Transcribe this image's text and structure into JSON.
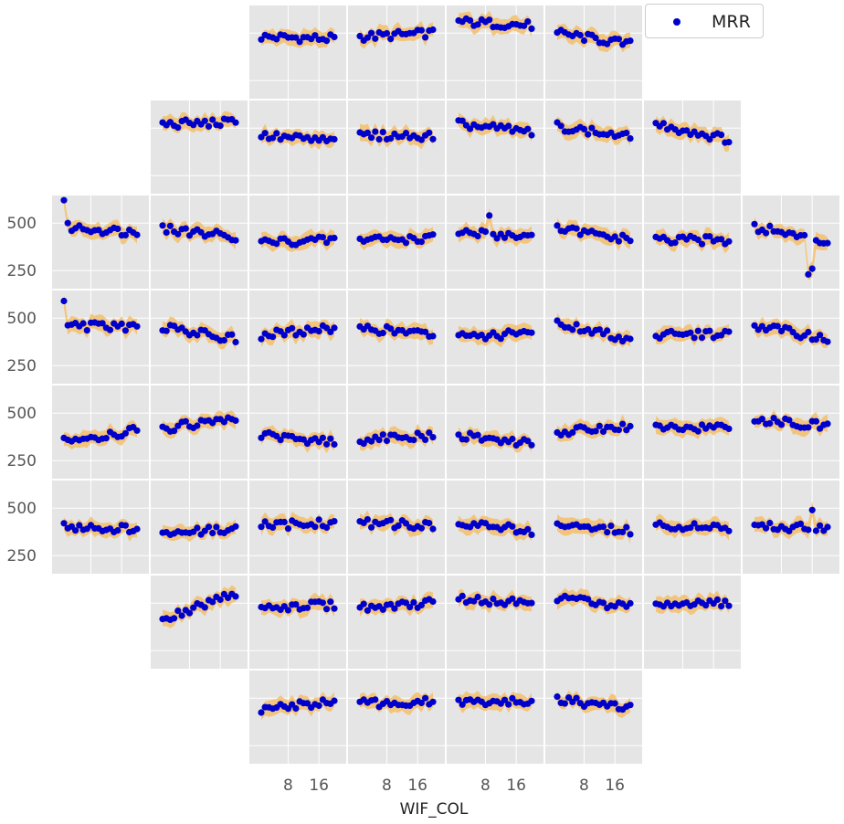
{
  "colors": {
    "panel_bg": "#e5e5e5",
    "grid": "#ffffff",
    "band": "#f5bf6a",
    "points": "#0000cc"
  },
  "chart_data": {
    "type": "scatter",
    "description_of_layout": "Small multiples arranged like a wafer map; rows 0-7, columns 0-7",
    "xlabel": "WIF_COL",
    "x_ticks": [
      "8",
      "16"
    ],
    "y_ticks": [
      "500",
      "250"
    ],
    "ylim": [
      150,
      650
    ],
    "legend": [
      "MRR"
    ],
    "panels": [
      {
        "row": 0,
        "col": 2,
        "start": 480,
        "trend": -10,
        "spikes": []
      },
      {
        "row": 0,
        "col": 3,
        "start": 480,
        "trend": 20,
        "spikes": []
      },
      {
        "row": 0,
        "col": 4,
        "start": 560,
        "trend": -20,
        "spikes": []
      },
      {
        "row": 0,
        "col": 5,
        "start": 500,
        "trend": -60,
        "spikes": []
      },
      {
        "row": 1,
        "col": 1,
        "start": 520,
        "trend": 10,
        "spikes": []
      },
      {
        "row": 1,
        "col": 2,
        "start": 460,
        "trend": -30,
        "spikes": []
      },
      {
        "row": 1,
        "col": 3,
        "start": 460,
        "trend": 0,
        "spikes": []
      },
      {
        "row": 1,
        "col": 4,
        "start": 520,
        "trend": -40,
        "spikes": []
      },
      {
        "row": 1,
        "col": 5,
        "start": 510,
        "trend": -60,
        "spikes": []
      },
      {
        "row": 1,
        "col": 6,
        "start": 520,
        "trend": -80,
        "spikes": []
      },
      {
        "row": 2,
        "col": 0,
        "start": 480,
        "trend": -30,
        "spikes": [
          {
            "i": 0,
            "y": 620
          }
        ]
      },
      {
        "row": 2,
        "col": 1,
        "start": 470,
        "trend": -40,
        "spikes": []
      },
      {
        "row": 2,
        "col": 2,
        "start": 400,
        "trend": 10,
        "spikes": []
      },
      {
        "row": 2,
        "col": 3,
        "start": 410,
        "trend": 10,
        "spikes": []
      },
      {
        "row": 2,
        "col": 4,
        "start": 450,
        "trend": -20,
        "spikes": [
          {
            "i": 8,
            "y": 540
          }
        ]
      },
      {
        "row": 2,
        "col": 5,
        "start": 470,
        "trend": -60,
        "spikes": []
      },
      {
        "row": 2,
        "col": 6,
        "start": 410,
        "trend": 0,
        "spikes": []
      },
      {
        "row": 2,
        "col": 7,
        "start": 480,
        "trend": -80,
        "spikes": [
          {
            "i": 14,
            "y": 230
          },
          {
            "i": 15,
            "y": 260
          }
        ]
      },
      {
        "row": 3,
        "col": 0,
        "start": 460,
        "trend": -10,
        "spikes": [
          {
            "i": 0,
            "y": 590
          }
        ]
      },
      {
        "row": 3,
        "col": 1,
        "start": 450,
        "trend": -60,
        "spikes": []
      },
      {
        "row": 3,
        "col": 2,
        "start": 410,
        "trend": 40,
        "spikes": []
      },
      {
        "row": 3,
        "col": 3,
        "start": 450,
        "trend": -40,
        "spikes": []
      },
      {
        "row": 3,
        "col": 4,
        "start": 400,
        "trend": 20,
        "spikes": []
      },
      {
        "row": 3,
        "col": 5,
        "start": 470,
        "trend": -80,
        "spikes": []
      },
      {
        "row": 3,
        "col": 6,
        "start": 410,
        "trend": 10,
        "spikes": []
      },
      {
        "row": 3,
        "col": 7,
        "start": 460,
        "trend": -70,
        "spikes": []
      },
      {
        "row": 4,
        "col": 0,
        "start": 350,
        "trend": 60,
        "spikes": []
      },
      {
        "row": 4,
        "col": 1,
        "start": 420,
        "trend": 50,
        "spikes": []
      },
      {
        "row": 4,
        "col": 2,
        "start": 380,
        "trend": -30,
        "spikes": []
      },
      {
        "row": 4,
        "col": 3,
        "start": 360,
        "trend": 20,
        "spikes": []
      },
      {
        "row": 4,
        "col": 4,
        "start": 380,
        "trend": -40,
        "spikes": []
      },
      {
        "row": 4,
        "col": 5,
        "start": 400,
        "trend": 30,
        "spikes": []
      },
      {
        "row": 4,
        "col": 6,
        "start": 420,
        "trend": 10,
        "spikes": []
      },
      {
        "row": 4,
        "col": 7,
        "start": 470,
        "trend": -40,
        "spikes": []
      },
      {
        "row": 5,
        "col": 0,
        "start": 390,
        "trend": 0,
        "spikes": [
          {
            "i": 0,
            "y": 420
          }
        ]
      },
      {
        "row": 5,
        "col": 1,
        "start": 370,
        "trend": 20,
        "spikes": []
      },
      {
        "row": 5,
        "col": 2,
        "start": 410,
        "trend": 10,
        "spikes": []
      },
      {
        "row": 5,
        "col": 3,
        "start": 420,
        "trend": -10,
        "spikes": []
      },
      {
        "row": 5,
        "col": 4,
        "start": 430,
        "trend": -50,
        "spikes": []
      },
      {
        "row": 5,
        "col": 5,
        "start": 410,
        "trend": -30,
        "spikes": []
      },
      {
        "row": 5,
        "col": 6,
        "start": 410,
        "trend": -20,
        "spikes": []
      },
      {
        "row": 5,
        "col": 7,
        "start": 400,
        "trend": 0,
        "spikes": [
          {
            "i": 15,
            "y": 490
          }
        ]
      },
      {
        "row": 6,
        "col": 1,
        "start": 420,
        "trend": 130,
        "spikes": []
      },
      {
        "row": 6,
        "col": 2,
        "start": 480,
        "trend": 10,
        "spikes": []
      },
      {
        "row": 6,
        "col": 3,
        "start": 480,
        "trend": 20,
        "spikes": []
      },
      {
        "row": 6,
        "col": 4,
        "start": 520,
        "trend": -20,
        "spikes": []
      },
      {
        "row": 6,
        "col": 5,
        "start": 530,
        "trend": -50,
        "spikes": []
      },
      {
        "row": 6,
        "col": 6,
        "start": 490,
        "trend": 10,
        "spikes": []
      },
      {
        "row": 7,
        "col": 2,
        "start": 440,
        "trend": 40,
        "spikes": []
      },
      {
        "row": 7,
        "col": 3,
        "start": 470,
        "trend": 10,
        "spikes": []
      },
      {
        "row": 7,
        "col": 4,
        "start": 480,
        "trend": 0,
        "spikes": []
      },
      {
        "row": 7,
        "col": 5,
        "start": 490,
        "trend": -40,
        "spikes": []
      }
    ]
  }
}
